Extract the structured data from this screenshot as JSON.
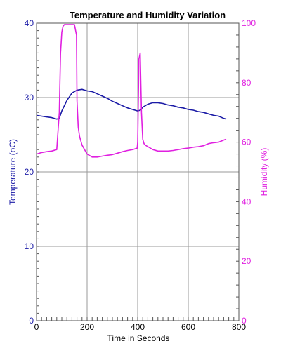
{
  "chart_data": {
    "type": "line",
    "title": "Temperature and Humidity Variation",
    "xlabel": "Time in Seconds",
    "ylabel_left": "Temperature (oC)",
    "ylabel_right": "Humidity (%)",
    "xlim": [
      0,
      800
    ],
    "ylim_left": [
      0,
      40
    ],
    "ylim_right": [
      0,
      100
    ],
    "x_ticks": [
      0,
      200,
      400,
      600,
      800
    ],
    "y_ticks_left": [
      0,
      10,
      20,
      30,
      40
    ],
    "y_ticks_right": [
      0,
      20,
      40,
      60,
      80,
      100
    ],
    "grid": true,
    "colors": {
      "temperature": "#1a1aa6",
      "humidity": "#e020e0",
      "grid": "#9a9a9a"
    },
    "series": [
      {
        "axis": "left",
        "x": [
          0,
          20,
          40,
          60,
          80,
          90,
          100,
          120,
          140,
          160,
          180,
          200,
          220,
          240,
          260,
          280,
          300,
          320,
          340,
          360,
          380,
          400,
          410,
          420,
          440,
          460,
          480,
          500,
          520,
          540,
          560,
          580,
          600,
          620,
          640,
          660,
          680,
          700,
          720,
          740,
          750
        ],
        "y": [
          27.6,
          27.5,
          27.4,
          27.3,
          27.1,
          27.2,
          28.2,
          29.6,
          30.6,
          31.0,
          31.1,
          30.9,
          30.8,
          30.5,
          30.2,
          29.9,
          29.5,
          29.2,
          28.9,
          28.6,
          28.4,
          28.2,
          28.3,
          28.7,
          29.1,
          29.3,
          29.3,
          29.2,
          29.0,
          28.9,
          28.7,
          28.6,
          28.4,
          28.3,
          28.1,
          28.0,
          27.8,
          27.6,
          27.5,
          27.2,
          27.1
        ]
      },
      {
        "axis": "right",
        "x": [
          0,
          20,
          40,
          60,
          80,
          90,
          95,
          100,
          105,
          110,
          120,
          140,
          150,
          158,
          160,
          165,
          170,
          180,
          200,
          220,
          240,
          260,
          280,
          300,
          320,
          340,
          360,
          380,
          398,
          400,
          405,
          410,
          415,
          420,
          425,
          430,
          440,
          450,
          460,
          480,
          500,
          520,
          540,
          560,
          580,
          600,
          620,
          640,
          660,
          680,
          700,
          720,
          740,
          750
        ],
        "y": [
          56,
          56.5,
          56.8,
          57,
          57.5,
          70,
          90,
          97,
          99,
          99.5,
          99.5,
          99.5,
          99.5,
          96,
          74,
          65,
          62,
          59,
          56,
          55,
          55,
          55.3,
          55.6,
          55.8,
          56.3,
          56.8,
          57.2,
          57.5,
          58,
          60,
          88,
          90,
          70,
          61,
          59.5,
          59,
          58.5,
          58,
          57.5,
          57,
          57,
          57,
          57.2,
          57.5,
          57.8,
          58,
          58.3,
          58.5,
          58.8,
          59.5,
          59.8,
          60,
          60.7,
          61
        ]
      }
    ]
  }
}
